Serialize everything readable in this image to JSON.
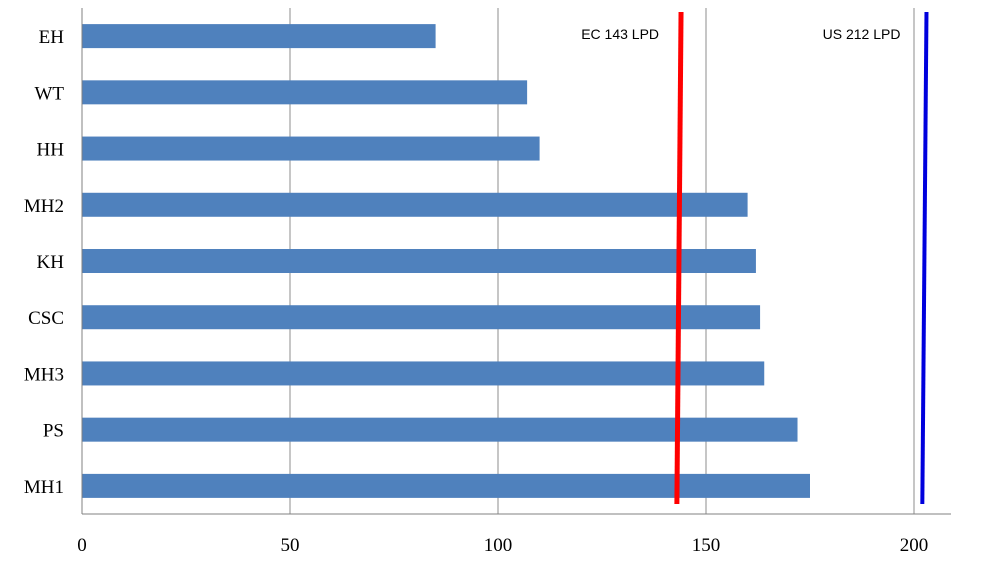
{
  "chart_data": {
    "type": "bar",
    "orientation": "horizontal",
    "categories": [
      "EH",
      "WT",
      "HH",
      "MH2",
      "KH",
      "CSC",
      "MH3",
      "PS",
      "MH1"
    ],
    "values": [
      85,
      107,
      110,
      160,
      162,
      163,
      164,
      172,
      175
    ],
    "xlim": [
      0,
      220
    ],
    "x_ticks": [
      0,
      50,
      100,
      150,
      200
    ],
    "grid": true,
    "bar_color": "#4f81bd",
    "reference_lines": [
      {
        "label": "EC 143 LPD",
        "x_top": 144,
        "x_bottom": 143,
        "color": "#ff0000"
      },
      {
        "label": "US 212 LPD",
        "x_top": 203,
        "x_bottom": 202,
        "color": "#0000dd"
      }
    ],
    "title": "",
    "xlabel": "",
    "ylabel": ""
  }
}
